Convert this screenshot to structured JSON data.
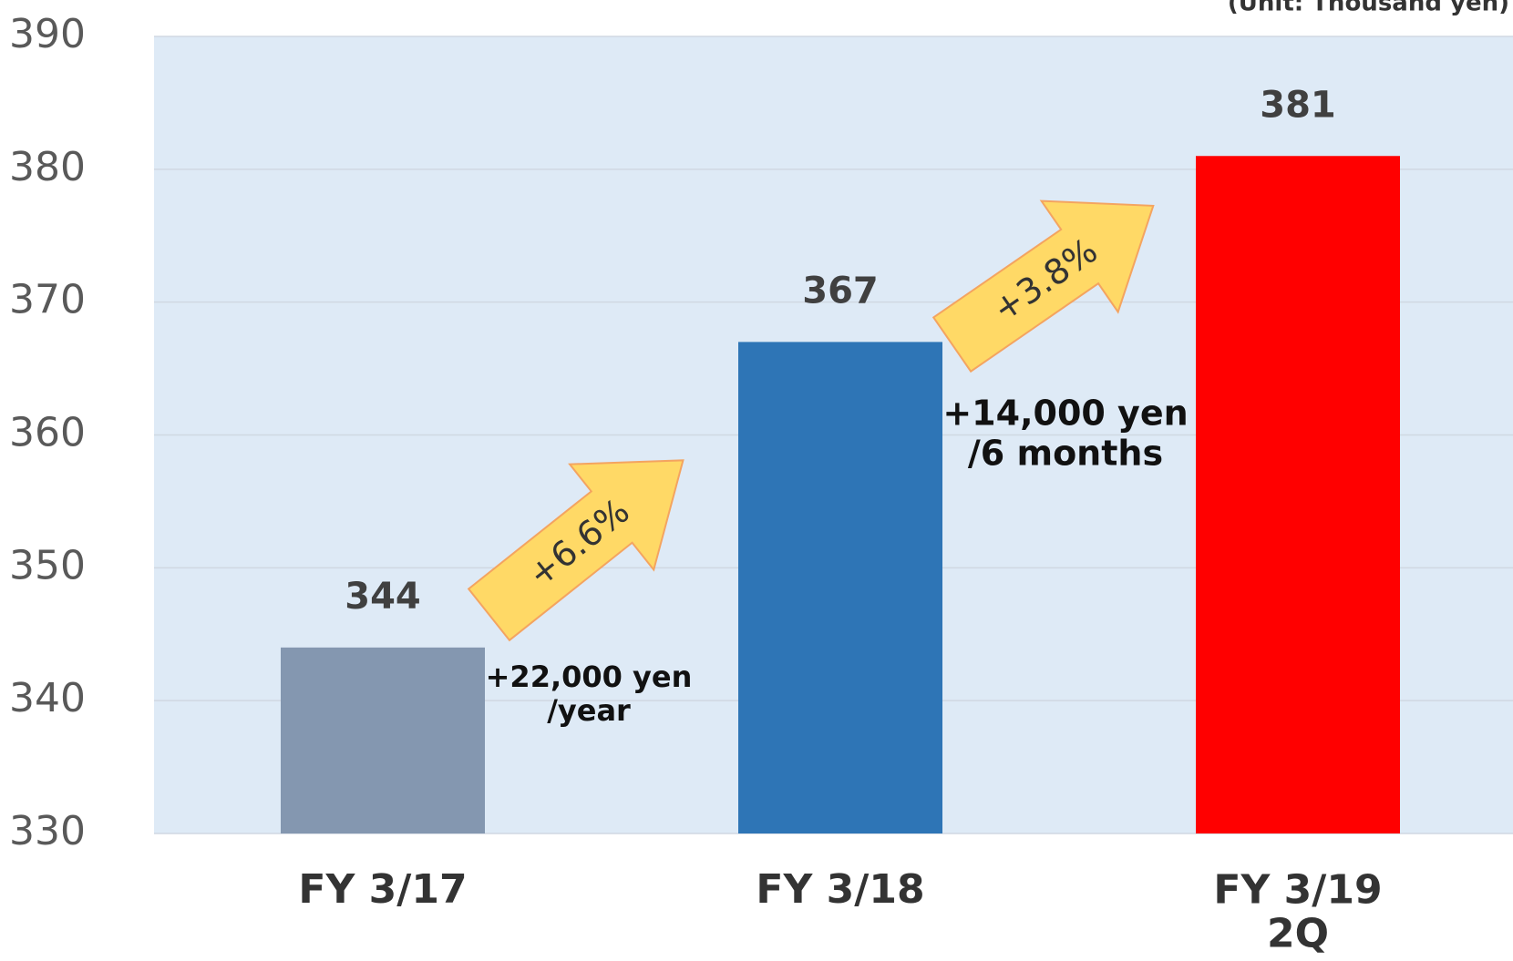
{
  "chart_data": {
    "type": "bar",
    "categories": [
      "FY 3/17",
      "FY 3/18",
      "FY 3/19\n2Q"
    ],
    "values": [
      344,
      367,
      381
    ],
    "colors": [
      "#8497b0",
      "#2e75b6",
      "#ff0000"
    ],
    "ylim": [
      330,
      390
    ],
    "yticks": [
      330,
      340,
      350,
      360,
      370,
      380,
      390
    ],
    "grid": true,
    "annotations": {
      "unit": "(Unit: Thousand yen)",
      "growth_1": "+6.6%",
      "growth_2": "+3.8%",
      "increase_1": "+22,000 yen\n/year",
      "increase_2": "+14,000 yen\n/6 months"
    }
  }
}
